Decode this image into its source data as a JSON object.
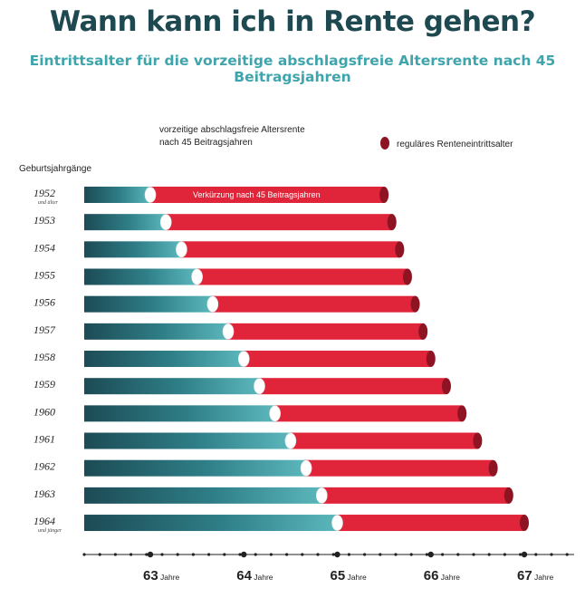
{
  "chart_data": {
    "type": "bar",
    "title": "Wann kann ich in Rente gehen?",
    "subtitle": "Eintrittsalter für die vorzeitige abschlagsfreie Altersrente nach 45 Beitragsjahren",
    "y_axis_title": "Geburtsjahrgänge",
    "legend": {
      "early_line1": "vorzeitige abschlagsfreie Altersrente",
      "early_line2": "nach 45 Beitragsjahren",
      "regular": "reguläres Renteneintrittsalter"
    },
    "bar_annotation": "Verkürzung nach 45 Beitragsjahren",
    "x_unit": "Jahre",
    "x_range": [
      62.3,
      67.5
    ],
    "ticks": [
      "63",
      "64",
      "65",
      "66",
      "67"
    ],
    "rows": [
      {
        "year": "1952",
        "note": "und älter",
        "early": 63.0,
        "regular": 65.5
      },
      {
        "year": "1953",
        "note": "",
        "early": 63.1667,
        "regular": 65.5833
      },
      {
        "year": "1954",
        "note": "",
        "early": 63.3333,
        "regular": 65.6667
      },
      {
        "year": "1955",
        "note": "",
        "early": 63.5,
        "regular": 65.75
      },
      {
        "year": "1956",
        "note": "",
        "early": 63.6667,
        "regular": 65.8333
      },
      {
        "year": "1957",
        "note": "",
        "early": 63.8333,
        "regular": 65.9167
      },
      {
        "year": "1958",
        "note": "",
        "early": 64.0,
        "regular": 66.0
      },
      {
        "year": "1959",
        "note": "",
        "early": 64.1667,
        "regular": 66.1667
      },
      {
        "year": "1960",
        "note": "",
        "early": 64.3333,
        "regular": 66.3333
      },
      {
        "year": "1961",
        "note": "",
        "early": 64.5,
        "regular": 66.5
      },
      {
        "year": "1962",
        "note": "",
        "early": 64.6667,
        "regular": 66.6667
      },
      {
        "year": "1963",
        "note": "",
        "early": 64.8333,
        "regular": 66.8333
      },
      {
        "year": "1964",
        "note": "und jünger",
        "early": 65.0,
        "regular": 67.0
      }
    ]
  },
  "colors": {
    "title": "#1f4950",
    "subtitle": "#3fa5ac",
    "teal_dark": "#1c4b55",
    "teal_light": "#57b4b8",
    "red": "#e0253a",
    "red_dark": "#8e1423",
    "axis": "#222222"
  }
}
